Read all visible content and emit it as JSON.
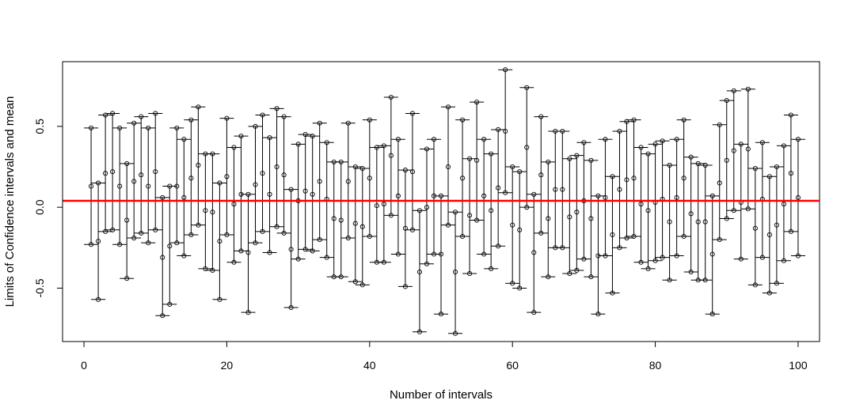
{
  "chart_data": {
    "type": "errorbar",
    "title": "",
    "xlabel": "Number of intervals",
    "ylabel": "Limits of Confidence intervals and mean",
    "xlim": [
      -3,
      103
    ],
    "ylim": [
      -0.83,
      0.9
    ],
    "x_ticks": [
      0,
      20,
      40,
      60,
      80,
      100
    ],
    "x_tick_labels": [
      "0",
      "20",
      "40",
      "60",
      "80",
      "100"
    ],
    "y_ticks": [
      -0.5,
      0.0,
      0.5
    ],
    "y_tick_labels": [
      "-0.5",
      "0.0",
      "0.5"
    ],
    "grid": false,
    "reference_line": {
      "y": 0.04,
      "color": "#ff0000"
    },
    "interval_color": "#000000",
    "intervals": [
      {
        "x": 1,
        "lower": -0.23,
        "upper": 0.49,
        "mean": 0.13
      },
      {
        "x": 2,
        "lower": -0.57,
        "upper": 0.15,
        "mean": -0.21
      },
      {
        "x": 3,
        "lower": -0.15,
        "upper": 0.57,
        "mean": 0.21
      },
      {
        "x": 4,
        "lower": -0.14,
        "upper": 0.58,
        "mean": 0.22
      },
      {
        "x": 5,
        "lower": -0.23,
        "upper": 0.49,
        "mean": 0.13
      },
      {
        "x": 6,
        "lower": -0.44,
        "upper": 0.27,
        "mean": -0.08
      },
      {
        "x": 7,
        "lower": -0.19,
        "upper": 0.52,
        "mean": 0.16
      },
      {
        "x": 8,
        "lower": -0.16,
        "upper": 0.56,
        "mean": 0.2
      },
      {
        "x": 9,
        "lower": -0.22,
        "upper": 0.49,
        "mean": 0.13
      },
      {
        "x": 10,
        "lower": -0.14,
        "upper": 0.58,
        "mean": 0.22
      },
      {
        "x": 11,
        "lower": -0.67,
        "upper": 0.06,
        "mean": -0.31
      },
      {
        "x": 12,
        "lower": -0.6,
        "upper": 0.13,
        "mean": -0.24
      },
      {
        "x": 13,
        "lower": -0.22,
        "upper": 0.49,
        "mean": 0.13
      },
      {
        "x": 14,
        "lower": -0.3,
        "upper": 0.42,
        "mean": 0.06
      },
      {
        "x": 15,
        "lower": -0.17,
        "upper": 0.54,
        "mean": 0.18
      },
      {
        "x": 16,
        "lower": -0.11,
        "upper": 0.62,
        "mean": 0.26
      },
      {
        "x": 17,
        "lower": -0.38,
        "upper": 0.33,
        "mean": -0.02
      },
      {
        "x": 18,
        "lower": -0.39,
        "upper": 0.33,
        "mean": -0.03
      },
      {
        "x": 19,
        "lower": -0.57,
        "upper": 0.15,
        "mean": -0.21
      },
      {
        "x": 20,
        "lower": -0.17,
        "upper": 0.55,
        "mean": 0.19
      },
      {
        "x": 21,
        "lower": -0.34,
        "upper": 0.37,
        "mean": 0.02
      },
      {
        "x": 22,
        "lower": -0.27,
        "upper": 0.44,
        "mean": 0.08
      },
      {
        "x": 23,
        "lower": -0.65,
        "upper": 0.08,
        "mean": -0.28
      },
      {
        "x": 24,
        "lower": -0.22,
        "upper": 0.5,
        "mean": 0.14
      },
      {
        "x": 25,
        "lower": -0.15,
        "upper": 0.57,
        "mean": 0.21
      },
      {
        "x": 26,
        "lower": -0.28,
        "upper": 0.43,
        "mean": 0.08
      },
      {
        "x": 27,
        "lower": -0.12,
        "upper": 0.61,
        "mean": 0.25
      },
      {
        "x": 28,
        "lower": -0.16,
        "upper": 0.56,
        "mean": 0.2
      },
      {
        "x": 29,
        "lower": -0.62,
        "upper": 0.11,
        "mean": -0.26
      },
      {
        "x": 30,
        "lower": -0.32,
        "upper": 0.39,
        "mean": 0.04
      },
      {
        "x": 31,
        "lower": -0.26,
        "upper": 0.45,
        "mean": 0.1
      },
      {
        "x": 32,
        "lower": -0.27,
        "upper": 0.44,
        "mean": 0.08
      },
      {
        "x": 33,
        "lower": -0.2,
        "upper": 0.52,
        "mean": 0.16
      },
      {
        "x": 34,
        "lower": -0.31,
        "upper": 0.4,
        "mean": 0.05
      },
      {
        "x": 35,
        "lower": -0.43,
        "upper": 0.28,
        "mean": -0.07
      },
      {
        "x": 36,
        "lower": -0.43,
        "upper": 0.28,
        "mean": -0.08
      },
      {
        "x": 37,
        "lower": -0.19,
        "upper": 0.52,
        "mean": 0.16
      },
      {
        "x": 38,
        "lower": -0.46,
        "upper": 0.25,
        "mean": -0.1
      },
      {
        "x": 39,
        "lower": -0.48,
        "upper": 0.24,
        "mean": -0.12
      },
      {
        "x": 40,
        "lower": -0.18,
        "upper": 0.54,
        "mean": 0.18
      },
      {
        "x": 41,
        "lower": -0.34,
        "upper": 0.37,
        "mean": 0.01
      },
      {
        "x": 42,
        "lower": -0.34,
        "upper": 0.38,
        "mean": 0.02
      },
      {
        "x": 43,
        "lower": -0.05,
        "upper": 0.68,
        "mean": 0.32
      },
      {
        "x": 44,
        "lower": -0.29,
        "upper": 0.42,
        "mean": 0.07
      },
      {
        "x": 45,
        "lower": -0.49,
        "upper": 0.23,
        "mean": -0.13
      },
      {
        "x": 46,
        "lower": -0.14,
        "upper": 0.58,
        "mean": 0.22
      },
      {
        "x": 47,
        "lower": -0.77,
        "upper": -0.02,
        "mean": -0.4
      },
      {
        "x": 48,
        "lower": -0.35,
        "upper": 0.36,
        "mean": 0.0
      },
      {
        "x": 49,
        "lower": -0.29,
        "upper": 0.42,
        "mean": 0.07
      },
      {
        "x": 50,
        "lower": -0.66,
        "upper": 0.07,
        "mean": -0.29
      },
      {
        "x": 51,
        "lower": -0.11,
        "upper": 0.62,
        "mean": 0.25
      },
      {
        "x": 52,
        "lower": -0.78,
        "upper": -0.03,
        "mean": -0.4
      },
      {
        "x": 53,
        "lower": -0.18,
        "upper": 0.54,
        "mean": 0.18
      },
      {
        "x": 54,
        "lower": -0.41,
        "upper": 0.3,
        "mean": -0.05
      },
      {
        "x": 55,
        "lower": -0.08,
        "upper": 0.65,
        "mean": 0.29
      },
      {
        "x": 56,
        "lower": -0.29,
        "upper": 0.42,
        "mean": 0.07
      },
      {
        "x": 57,
        "lower": -0.38,
        "upper": 0.33,
        "mean": -0.02
      },
      {
        "x": 58,
        "lower": -0.24,
        "upper": 0.48,
        "mean": 0.12
      },
      {
        "x": 59,
        "lower": 0.09,
        "upper": 0.85,
        "mean": 0.47
      },
      {
        "x": 60,
        "lower": -0.47,
        "upper": 0.25,
        "mean": -0.11
      },
      {
        "x": 61,
        "lower": -0.5,
        "upper": 0.22,
        "mean": -0.14
      },
      {
        "x": 62,
        "lower": 0.0,
        "upper": 0.74,
        "mean": 0.37
      },
      {
        "x": 63,
        "lower": -0.65,
        "upper": 0.08,
        "mean": -0.28
      },
      {
        "x": 64,
        "lower": -0.16,
        "upper": 0.56,
        "mean": 0.2
      },
      {
        "x": 65,
        "lower": -0.43,
        "upper": 0.28,
        "mean": -0.07
      },
      {
        "x": 66,
        "lower": -0.25,
        "upper": 0.47,
        "mean": 0.11
      },
      {
        "x": 67,
        "lower": -0.25,
        "upper": 0.47,
        "mean": 0.11
      },
      {
        "x": 68,
        "lower": -0.41,
        "upper": 0.3,
        "mean": -0.06
      },
      {
        "x": 69,
        "lower": -0.39,
        "upper": 0.32,
        "mean": -0.03
      },
      {
        "x": 70,
        "lower": -0.32,
        "upper": 0.4,
        "mean": 0.04
      },
      {
        "x": 71,
        "lower": -0.43,
        "upper": 0.29,
        "mean": -0.07
      },
      {
        "x": 72,
        "lower": -0.66,
        "upper": 0.07,
        "mean": -0.3
      },
      {
        "x": 73,
        "lower": -0.3,
        "upper": 0.42,
        "mean": 0.06
      },
      {
        "x": 74,
        "lower": -0.53,
        "upper": 0.19,
        "mean": -0.17
      },
      {
        "x": 75,
        "lower": -0.25,
        "upper": 0.47,
        "mean": 0.11
      },
      {
        "x": 76,
        "lower": -0.19,
        "upper": 0.53,
        "mean": 0.17
      },
      {
        "x": 77,
        "lower": -0.18,
        "upper": 0.54,
        "mean": 0.18
      },
      {
        "x": 78,
        "lower": -0.34,
        "upper": 0.37,
        "mean": 0.02
      },
      {
        "x": 79,
        "lower": -0.38,
        "upper": 0.33,
        "mean": -0.02
      },
      {
        "x": 80,
        "lower": -0.33,
        "upper": 0.39,
        "mean": 0.03
      },
      {
        "x": 81,
        "lower": -0.31,
        "upper": 0.41,
        "mean": 0.05
      },
      {
        "x": 82,
        "lower": -0.45,
        "upper": 0.26,
        "mean": -0.09
      },
      {
        "x": 83,
        "lower": -0.3,
        "upper": 0.42,
        "mean": 0.06
      },
      {
        "x": 84,
        "lower": -0.18,
        "upper": 0.54,
        "mean": 0.18
      },
      {
        "x": 85,
        "lower": -0.4,
        "upper": 0.31,
        "mean": -0.04
      },
      {
        "x": 86,
        "lower": -0.45,
        "upper": 0.27,
        "mean": -0.09
      },
      {
        "x": 87,
        "lower": -0.45,
        "upper": 0.26,
        "mean": -0.09
      },
      {
        "x": 88,
        "lower": -0.66,
        "upper": 0.07,
        "mean": -0.29
      },
      {
        "x": 89,
        "lower": -0.2,
        "upper": 0.51,
        "mean": 0.15
      },
      {
        "x": 90,
        "lower": -0.07,
        "upper": 0.66,
        "mean": 0.29
      },
      {
        "x": 91,
        "lower": -0.02,
        "upper": 0.72,
        "mean": 0.35
      },
      {
        "x": 92,
        "lower": -0.32,
        "upper": 0.39,
        "mean": 0.03
      },
      {
        "x": 93,
        "lower": -0.01,
        "upper": 0.73,
        "mean": 0.36
      },
      {
        "x": 94,
        "lower": -0.48,
        "upper": 0.24,
        "mean": -0.13
      },
      {
        "x": 95,
        "lower": -0.31,
        "upper": 0.4,
        "mean": 0.05
      },
      {
        "x": 96,
        "lower": -0.53,
        "upper": 0.19,
        "mean": -0.17
      },
      {
        "x": 97,
        "lower": -0.47,
        "upper": 0.25,
        "mean": -0.11
      },
      {
        "x": 98,
        "lower": -0.33,
        "upper": 0.38,
        "mean": 0.02
      },
      {
        "x": 99,
        "lower": -0.15,
        "upper": 0.57,
        "mean": 0.21
      },
      {
        "x": 100,
        "lower": -0.3,
        "upper": 0.42,
        "mean": 0.06
      }
    ]
  }
}
